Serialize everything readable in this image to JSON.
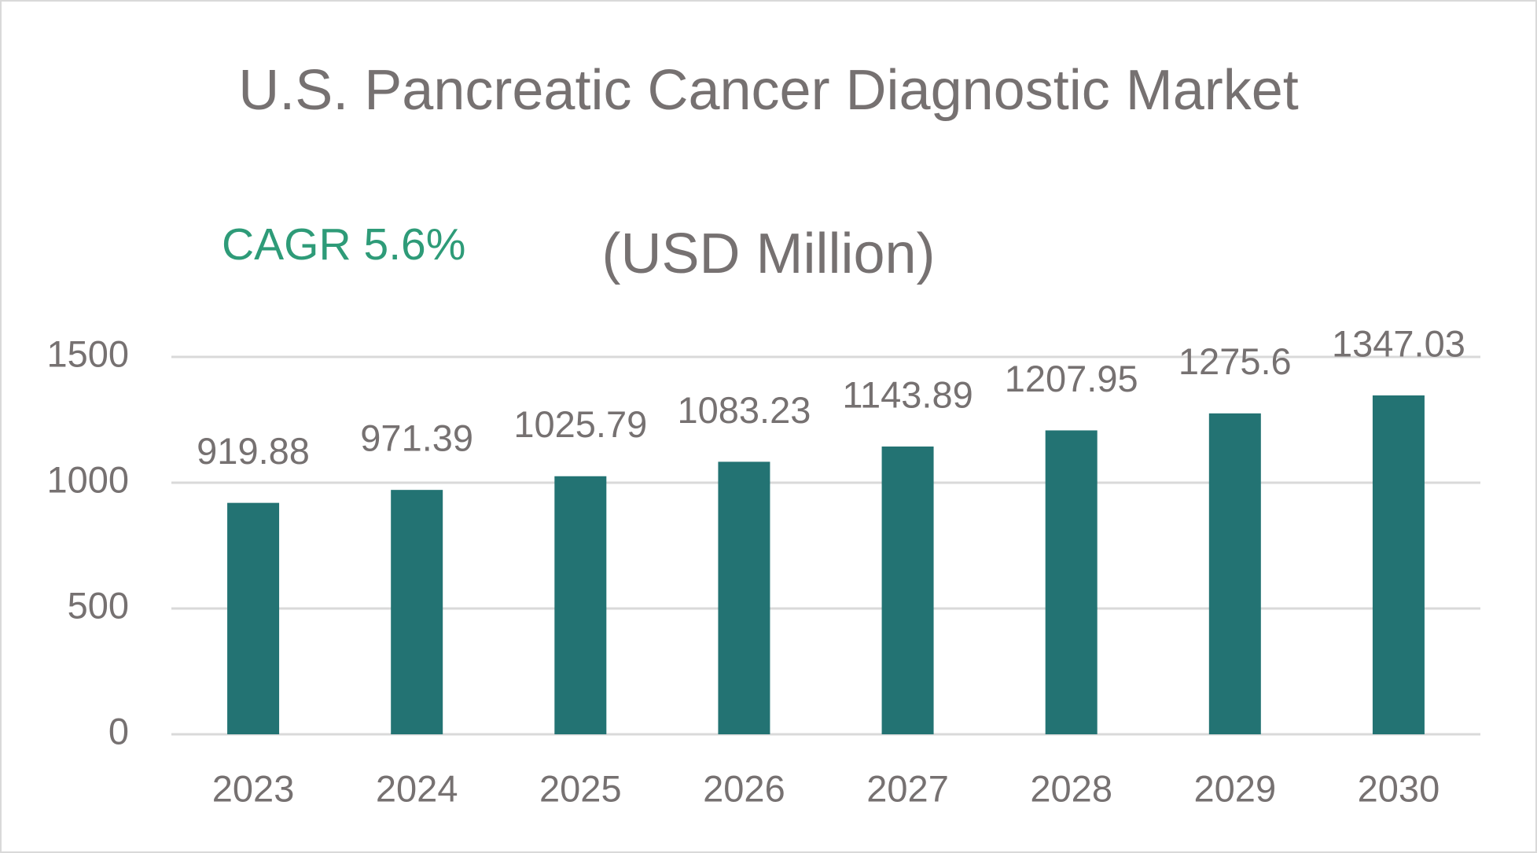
{
  "chart_data": {
    "type": "bar",
    "title": "U.S. Pancreatic Cancer Diagnostic Market",
    "subtitle": "(USD Million)",
    "annotation": "CAGR 5.6%",
    "categories": [
      "2023",
      "2024",
      "2025",
      "2026",
      "2027",
      "2028",
      "2029",
      "2030"
    ],
    "values": [
      919.88,
      971.39,
      1025.79,
      1083.23,
      1143.89,
      1207.95,
      1275.6,
      1347.03
    ],
    "color": "#237373",
    "ylim": [
      0,
      1500
    ],
    "yticks": [
      0,
      500,
      1000,
      1500
    ],
    "grid": true
  }
}
